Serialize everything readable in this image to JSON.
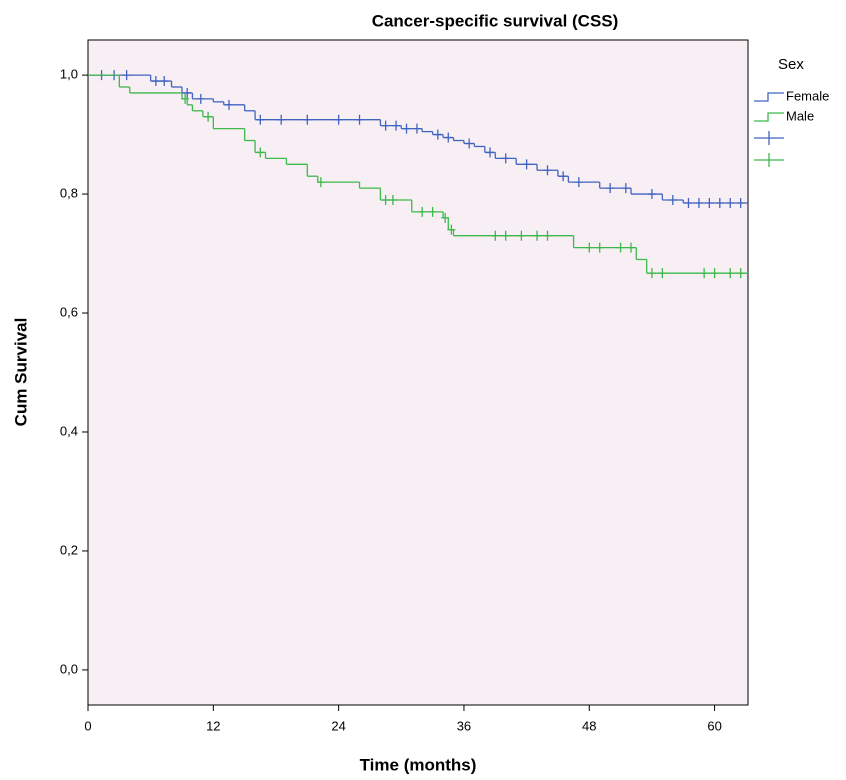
{
  "chart_data": {
    "type": "step",
    "title": "Cancer-specific survival (CSS)",
    "x_label": "Time (months)",
    "y_label": "Cum Survival",
    "legend_title": "Sex",
    "xlim": [
      0,
      63.2
    ],
    "ylim": [
      -0.059,
      1.059
    ],
    "xticks": [
      0,
      12,
      24,
      36,
      48,
      60
    ],
    "yticks": [
      {
        "value": 0,
        "label": "0,0"
      },
      {
        "value": 0.2,
        "label": "0,2"
      },
      {
        "value": 0.4,
        "label": "0,4"
      },
      {
        "value": 0.6,
        "label": "0,6"
      },
      {
        "value": 0.8,
        "label": "0,8"
      },
      {
        "value": 1,
        "label": "1,0"
      }
    ],
    "background": "#f7eff4",
    "series": [
      {
        "name": "Female",
        "color": "#4163c0",
        "x": [
          0,
          6,
          8,
          9,
          10,
          12,
          13,
          15,
          16,
          28,
          30,
          32,
          33,
          34,
          35,
          36,
          37,
          38,
          39,
          41,
          43,
          45,
          46,
          49,
          52,
          55,
          57
        ],
        "values": [
          1,
          0.99,
          0.98,
          0.97,
          0.96,
          0.955,
          0.95,
          0.94,
          0.925,
          0.915,
          0.91,
          0.905,
          0.9,
          0.895,
          0.89,
          0.885,
          0.88,
          0.87,
          0.86,
          0.85,
          0.84,
          0.83,
          0.82,
          0.81,
          0.8,
          0.79,
          0.785
        ],
        "censor_x": [
          1.3,
          2.5,
          3.7,
          6.5,
          7.3,
          9.5,
          10.8,
          13.5,
          16.5,
          18.5,
          21,
          24,
          26,
          28.5,
          29.5,
          30.5,
          31.5,
          33.5,
          34.5,
          36.5,
          38.5,
          40,
          42,
          44,
          45.5,
          47,
          50,
          51.5,
          54,
          56,
          57.5,
          58.5,
          59.5,
          60.5,
          61.5,
          62.5
        ],
        "censor_y": [
          1,
          1,
          1,
          0.99,
          0.99,
          0.97,
          0.96,
          0.95,
          0.925,
          0.925,
          0.925,
          0.925,
          0.925,
          0.915,
          0.915,
          0.91,
          0.91,
          0.9,
          0.895,
          0.885,
          0.87,
          0.86,
          0.85,
          0.84,
          0.83,
          0.82,
          0.81,
          0.81,
          0.8,
          0.79,
          0.785,
          0.785,
          0.785,
          0.785,
          0.785,
          0.785
        ]
      },
      {
        "name": "Male",
        "color": "#3cb94a",
        "x": [
          0,
          3,
          4,
          9,
          9.5,
          10,
          11,
          12,
          15,
          16,
          17,
          19,
          21,
          22,
          26,
          28,
          31,
          34,
          34.5,
          35,
          46.5,
          52.5,
          53.5
        ],
        "values": [
          1,
          0.98,
          0.97,
          0.96,
          0.95,
          0.94,
          0.93,
          0.91,
          0.89,
          0.87,
          0.86,
          0.85,
          0.83,
          0.82,
          0.81,
          0.79,
          0.77,
          0.76,
          0.74,
          0.73,
          0.71,
          0.69,
          0.667
        ],
        "censor_x": [
          9.3,
          11.5,
          16.5,
          22.3,
          28.5,
          29.2,
          32,
          33,
          34.2,
          34.8,
          39,
          40,
          41.5,
          43,
          44,
          48,
          49,
          51,
          52,
          54,
          55,
          59,
          60,
          61.5,
          62.5
        ],
        "censor_y": [
          0.96,
          0.93,
          0.87,
          0.82,
          0.79,
          0.79,
          0.77,
          0.77,
          0.76,
          0.74,
          0.73,
          0.73,
          0.73,
          0.73,
          0.73,
          0.71,
          0.71,
          0.71,
          0.71,
          0.667,
          0.667,
          0.667,
          0.667,
          0.667,
          0.667
        ]
      }
    ]
  }
}
